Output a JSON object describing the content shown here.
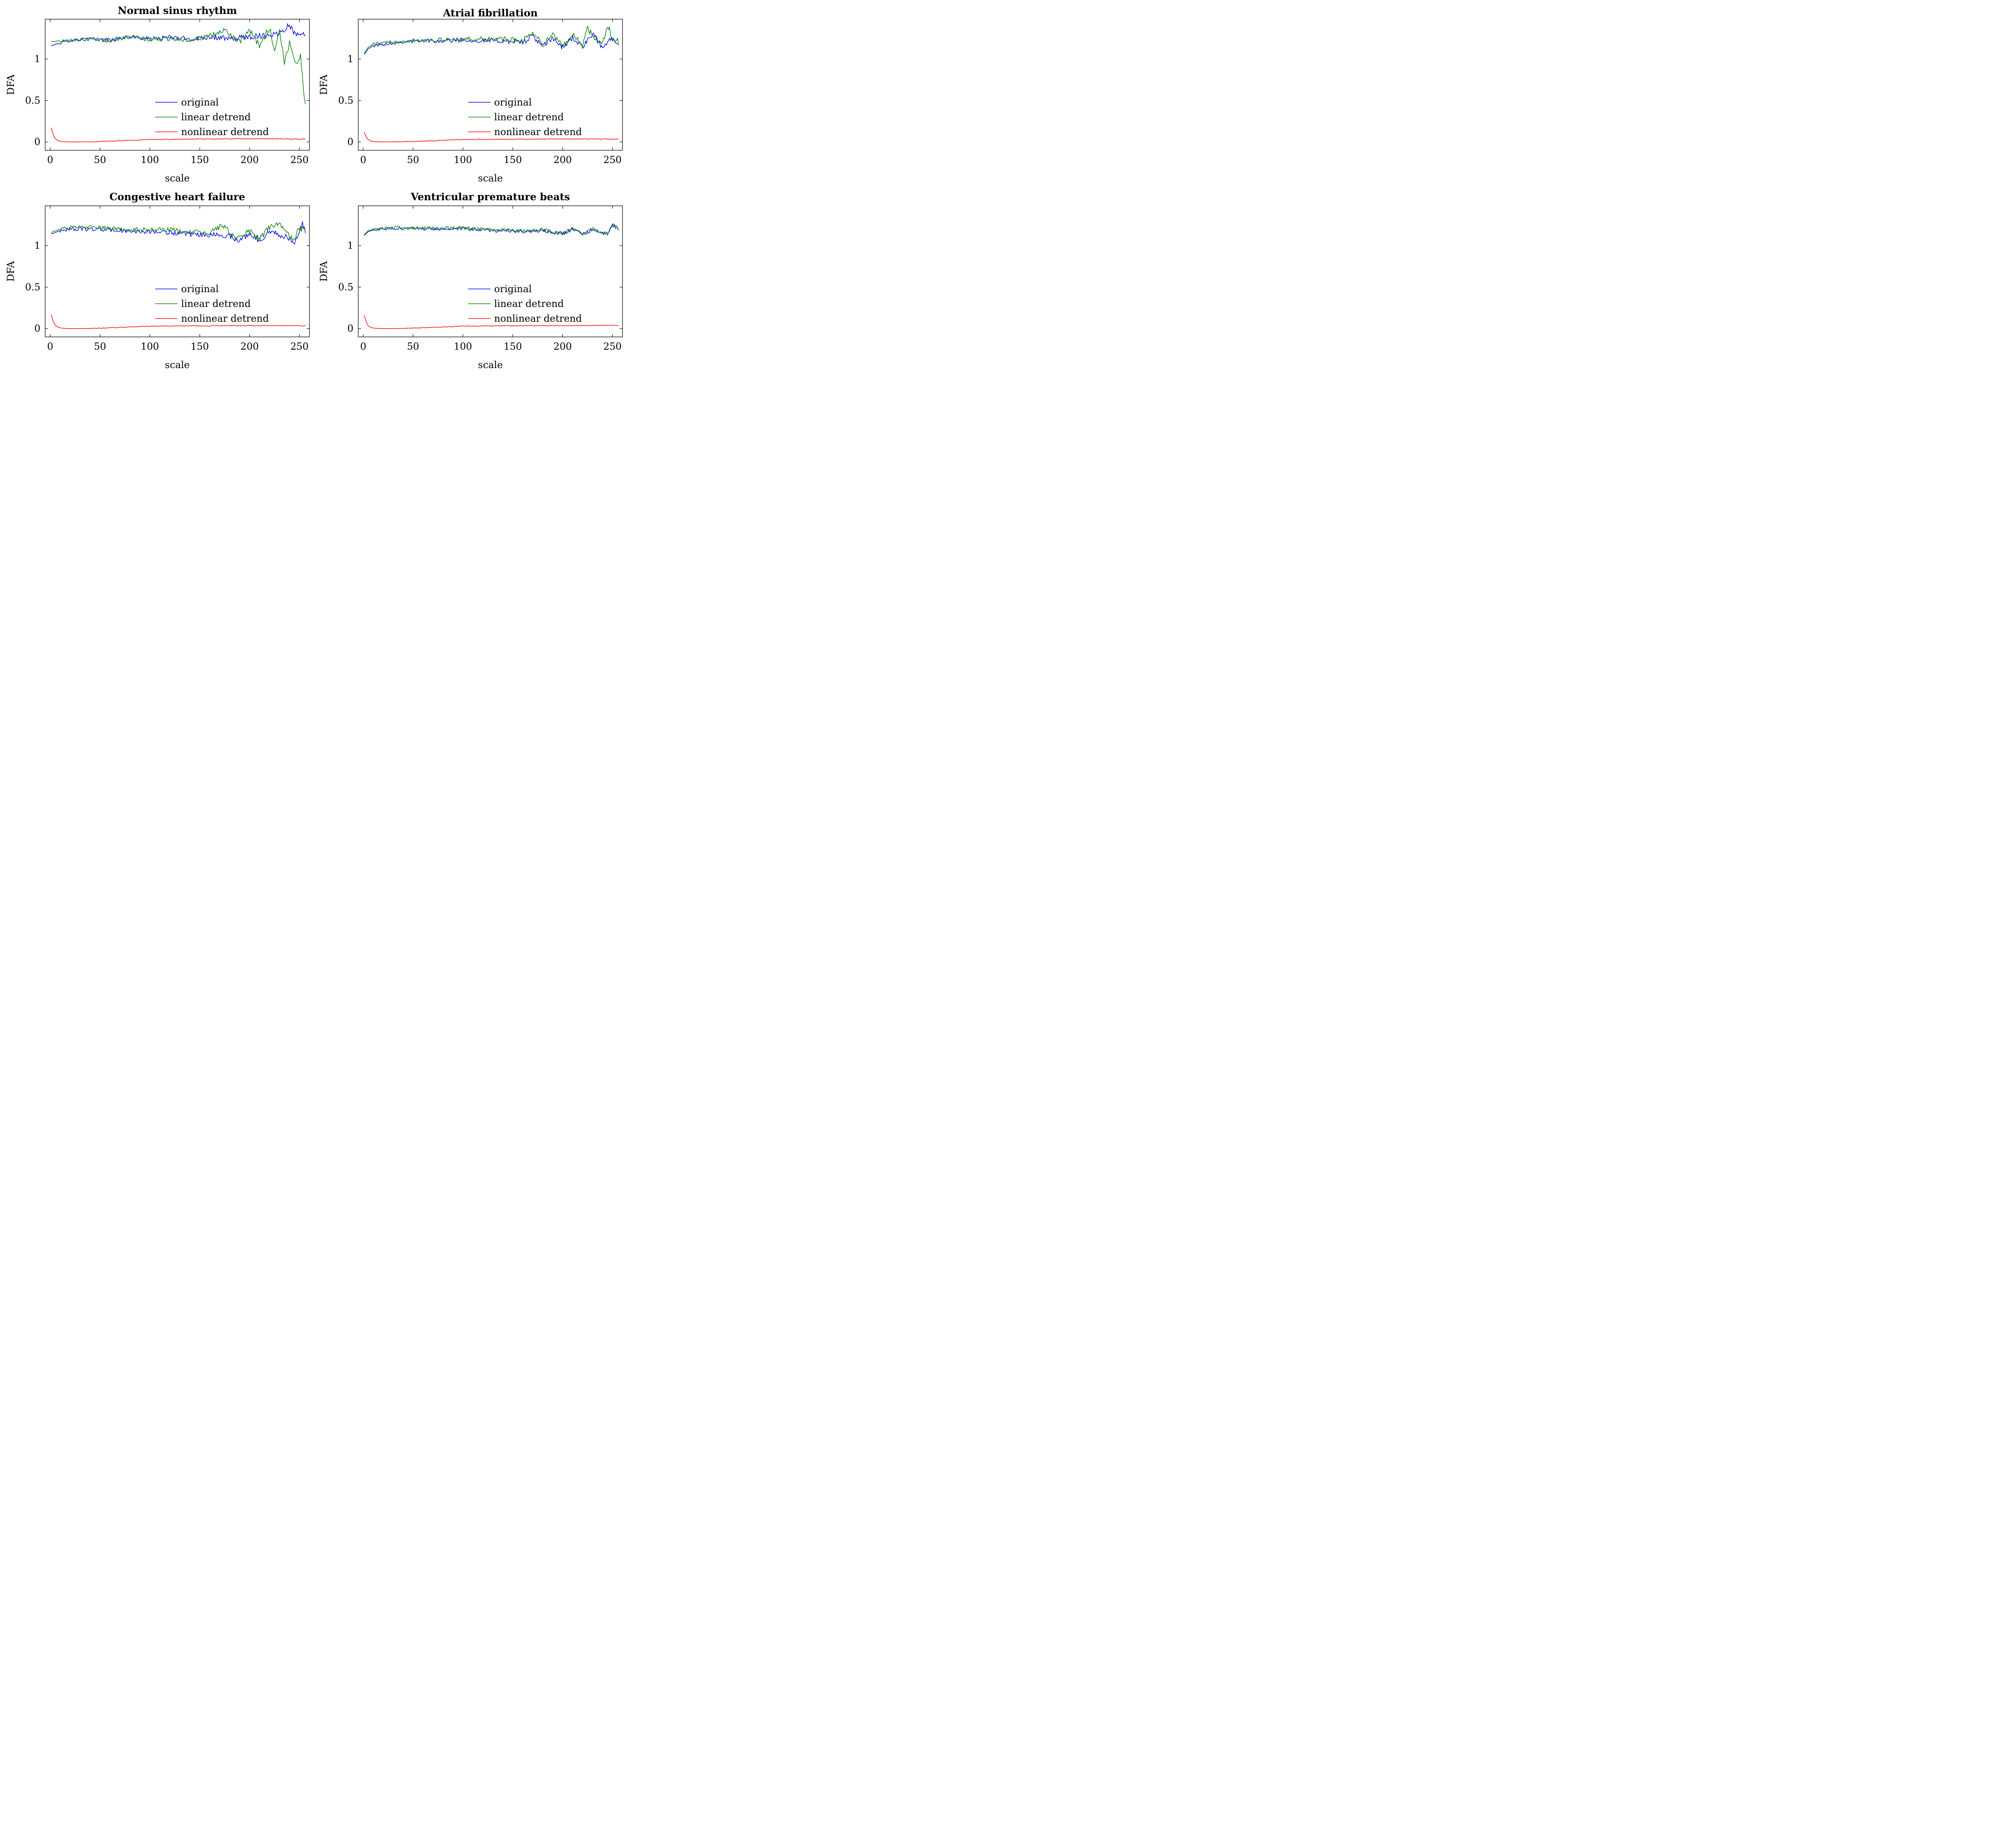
{
  "chart_data": [
    {
      "type": "line",
      "title": "Normal sinus rhythm",
      "xlabel": "scale",
      "ylabel": "DFA",
      "xlim": [
        -5,
        260
      ],
      "ylim": [
        -0.1,
        1.48
      ],
      "xticks": [
        0,
        50,
        100,
        150,
        200,
        250
      ],
      "yticks": [
        0,
        0.5,
        1
      ],
      "ytick_labels": [
        "0",
        "0.5",
        "1"
      ],
      "grid": false,
      "legend": "lower-middle",
      "series": [
        {
          "name": "original",
          "color": "#0000ff",
          "x": [
            1,
            20,
            40,
            60,
            80,
            100,
            120,
            140,
            160,
            180,
            200,
            220,
            230,
            240,
            245,
            250,
            256
          ],
          "y": [
            1.16,
            1.23,
            1.24,
            1.23,
            1.27,
            1.24,
            1.26,
            1.24,
            1.27,
            1.24,
            1.27,
            1.29,
            1.31,
            1.42,
            1.3,
            1.33,
            1.28
          ]
        },
        {
          "name": "linear detrend",
          "color": "#008000",
          "x": [
            1,
            20,
            40,
            60,
            80,
            100,
            120,
            140,
            160,
            175,
            190,
            200,
            210,
            220,
            225,
            230,
            235,
            240,
            245,
            248,
            251,
            254,
            256
          ],
          "y": [
            1.21,
            1.23,
            1.24,
            1.22,
            1.27,
            1.23,
            1.25,
            1.23,
            1.27,
            1.35,
            1.2,
            1.34,
            1.16,
            1.38,
            1.1,
            1.35,
            0.95,
            1.2,
            1.0,
            0.95,
            1.05,
            0.65,
            0.45
          ]
        },
        {
          "name": "nonlinear detrend",
          "color": "#ff0000",
          "x": [
            1,
            3,
            5,
            8,
            12,
            20,
            40,
            60,
            80,
            100,
            150,
            200,
            256
          ],
          "y": [
            0.17,
            0.09,
            0.04,
            0.015,
            0.005,
            0.0,
            0.002,
            0.01,
            0.02,
            0.03,
            0.035,
            0.038,
            0.035
          ]
        }
      ]
    },
    {
      "type": "line",
      "title": "Atrial fibrillation",
      "xlabel": "scale",
      "ylabel": "DFA",
      "xlim": [
        -5,
        260
      ],
      "ylim": [
        -0.1,
        1.48
      ],
      "xticks": [
        0,
        50,
        100,
        150,
        200,
        250
      ],
      "yticks": [
        0,
        0.5,
        1
      ],
      "ytick_labels": [
        "0",
        "0.5",
        "1"
      ],
      "grid": false,
      "legend": "lower-middle",
      "series": [
        {
          "name": "original",
          "color": "#0000ff",
          "x": [
            1,
            5,
            10,
            20,
            40,
            60,
            80,
            100,
            120,
            140,
            160,
            170,
            180,
            190,
            200,
            210,
            220,
            230,
            240,
            250,
            256
          ],
          "y": [
            1.06,
            1.12,
            1.16,
            1.18,
            1.21,
            1.22,
            1.22,
            1.23,
            1.22,
            1.22,
            1.2,
            1.28,
            1.15,
            1.25,
            1.14,
            1.26,
            1.14,
            1.3,
            1.13,
            1.27,
            1.2
          ]
        },
        {
          "name": "linear detrend",
          "color": "#008000",
          "x": [
            1,
            5,
            10,
            20,
            40,
            60,
            80,
            100,
            120,
            140,
            160,
            170,
            180,
            190,
            200,
            210,
            220,
            225,
            230,
            240,
            245,
            250,
            256
          ],
          "y": [
            1.07,
            1.14,
            1.18,
            1.19,
            1.22,
            1.23,
            1.23,
            1.24,
            1.24,
            1.24,
            1.22,
            1.33,
            1.17,
            1.3,
            1.15,
            1.3,
            1.16,
            1.37,
            1.28,
            1.17,
            1.42,
            1.24,
            1.22
          ]
        },
        {
          "name": "nonlinear detrend",
          "color": "#ff0000",
          "x": [
            1,
            3,
            5,
            8,
            12,
            20,
            40,
            60,
            80,
            100,
            150,
            200,
            256
          ],
          "y": [
            0.12,
            0.06,
            0.03,
            0.01,
            0.004,
            0.0,
            0.003,
            0.01,
            0.02,
            0.03,
            0.033,
            0.036,
            0.035
          ]
        }
      ]
    },
    {
      "type": "line",
      "title": "Congestive heart failure",
      "xlabel": "scale",
      "ylabel": "DFA",
      "xlim": [
        -5,
        260
      ],
      "ylim": [
        -0.1,
        1.48
      ],
      "xticks": [
        0,
        50,
        100,
        150,
        200,
        250
      ],
      "yticks": [
        0,
        0.5,
        1
      ],
      "ytick_labels": [
        "0",
        "0.5",
        "1"
      ],
      "grid": false,
      "legend": "lower-middle",
      "series": [
        {
          "name": "original",
          "color": "#0000ff",
          "x": [
            1,
            5,
            10,
            20,
            40,
            60,
            80,
            100,
            120,
            140,
            160,
            180,
            190,
            200,
            210,
            220,
            230,
            240,
            245,
            250,
            253,
            256
          ],
          "y": [
            1.14,
            1.16,
            1.18,
            1.2,
            1.2,
            1.19,
            1.17,
            1.17,
            1.16,
            1.13,
            1.13,
            1.12,
            1.06,
            1.15,
            1.06,
            1.18,
            1.13,
            1.08,
            1.03,
            1.2,
            1.28,
            1.14
          ]
        },
        {
          "name": "linear detrend",
          "color": "#008000",
          "x": [
            1,
            5,
            10,
            20,
            40,
            60,
            80,
            100,
            120,
            140,
            160,
            175,
            185,
            200,
            210,
            220,
            230,
            240,
            245,
            250,
            256
          ],
          "y": [
            1.16,
            1.18,
            1.2,
            1.22,
            1.22,
            1.21,
            1.19,
            1.2,
            1.19,
            1.16,
            1.16,
            1.25,
            1.08,
            1.18,
            1.08,
            1.22,
            1.27,
            1.1,
            1.07,
            1.22,
            1.18
          ]
        },
        {
          "name": "nonlinear detrend",
          "color": "#ff0000",
          "x": [
            1,
            3,
            5,
            8,
            12,
            20,
            40,
            60,
            80,
            100,
            150,
            200,
            256
          ],
          "y": [
            0.17,
            0.09,
            0.04,
            0.015,
            0.005,
            0.0,
            0.002,
            0.01,
            0.02,
            0.03,
            0.034,
            0.036,
            0.035
          ]
        }
      ]
    },
    {
      "type": "line",
      "title": "Ventricular premature beats",
      "xlabel": "scale",
      "ylabel": "DFA",
      "xlim": [
        -5,
        260
      ],
      "ylim": [
        -0.1,
        1.48
      ],
      "xticks": [
        0,
        50,
        100,
        150,
        200,
        250
      ],
      "yticks": [
        0,
        0.5,
        1
      ],
      "ytick_labels": [
        "0",
        "0.5",
        "1"
      ],
      "grid": false,
      "legend": "lower-middle",
      "series": [
        {
          "name": "original",
          "color": "#0000ff",
          "x": [
            1,
            5,
            10,
            20,
            40,
            60,
            80,
            100,
            120,
            140,
            160,
            180,
            200,
            210,
            220,
            230,
            240,
            245,
            250,
            256
          ],
          "y": [
            1.12,
            1.17,
            1.19,
            1.2,
            1.21,
            1.2,
            1.2,
            1.2,
            1.19,
            1.18,
            1.17,
            1.18,
            1.14,
            1.2,
            1.13,
            1.2,
            1.14,
            1.15,
            1.24,
            1.2
          ]
        },
        {
          "name": "linear detrend",
          "color": "#008000",
          "x": [
            1,
            5,
            10,
            20,
            40,
            60,
            80,
            100,
            120,
            140,
            160,
            180,
            200,
            210,
            220,
            230,
            240,
            245,
            250,
            256
          ],
          "y": [
            1.13,
            1.18,
            1.2,
            1.21,
            1.22,
            1.21,
            1.21,
            1.21,
            1.2,
            1.19,
            1.18,
            1.19,
            1.15,
            1.21,
            1.14,
            1.21,
            1.15,
            1.16,
            1.25,
            1.21
          ]
        },
        {
          "name": "nonlinear detrend",
          "color": "#ff0000",
          "x": [
            1,
            3,
            5,
            8,
            12,
            20,
            40,
            60,
            80,
            100,
            150,
            200,
            256
          ],
          "y": [
            0.16,
            0.08,
            0.035,
            0.012,
            0.004,
            0.0,
            0.003,
            0.01,
            0.02,
            0.03,
            0.034,
            0.037,
            0.04
          ]
        }
      ]
    }
  ]
}
